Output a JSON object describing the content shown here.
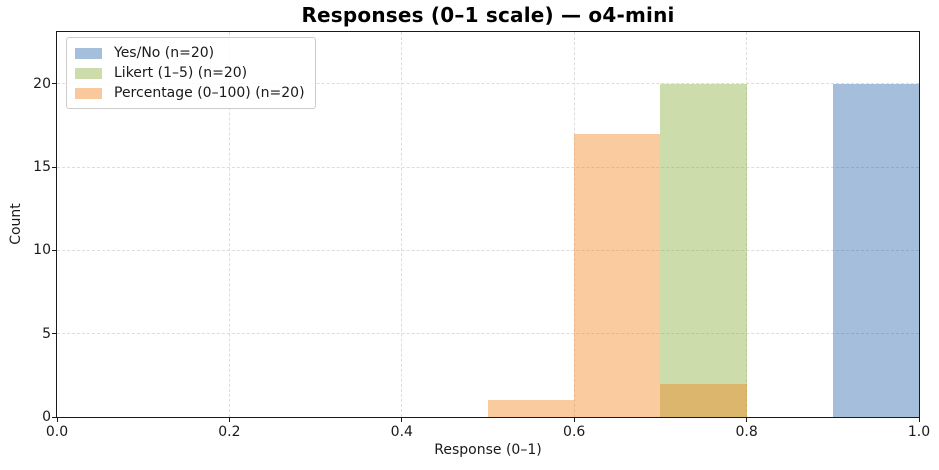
{
  "figure": {
    "title": "Responses (0–1 scale) — o4-mini"
  },
  "chart_data": {
    "type": "bar",
    "subtype": "histogram",
    "title": "Responses (0–1 scale) — o4-mini",
    "xlabel": "Response (0–1)",
    "ylabel": "Count",
    "xlim": [
      0.0,
      1.0
    ],
    "ylim": [
      0.0,
      23.1
    ],
    "bin_width": 0.1,
    "grid": true,
    "grid_style": "dashed",
    "grid_color": "#dcdcdc",
    "spine_color": "#1a1a1a",
    "legend_position": "upper-left",
    "xticks": [
      {
        "v": 0.0,
        "label": "0.0"
      },
      {
        "v": 0.2,
        "label": "0.2"
      },
      {
        "v": 0.4,
        "label": "0.4"
      },
      {
        "v": 0.6,
        "label": "0.6"
      },
      {
        "v": 0.8,
        "label": "0.8"
      },
      {
        "v": 1.0,
        "label": "1.0"
      }
    ],
    "yticks": [
      {
        "v": 0,
        "label": "0"
      },
      {
        "v": 5,
        "label": "5"
      },
      {
        "v": 10,
        "label": "10"
      },
      {
        "v": 15,
        "label": "15"
      },
      {
        "v": 20,
        "label": "20"
      }
    ],
    "series": [
      {
        "key": "yes-no",
        "name": "Yes/No (n=20)",
        "color": "rgba(30,93,168,0.4)",
        "swatch_hex": "#a5bedc",
        "bins": [
          {
            "x0": 0.9,
            "x1": 1.0,
            "count": 20
          }
        ]
      },
      {
        "key": "likert",
        "name": "Likert (1–5) (n=20)",
        "color": "rgba(130,168,45,0.4)",
        "swatch_hex": "#cddcab",
        "bins": [
          {
            "x0": 0.7,
            "x1": 0.8,
            "count": 20
          }
        ]
      },
      {
        "key": "percentage",
        "name": "Percentage (0–100) (n=20)",
        "color": "rgba(243,124,16,0.4)",
        "swatch_hex": "#f9c99d",
        "bins": [
          {
            "x0": 0.5,
            "x1": 0.6,
            "count": 1
          },
          {
            "x0": 0.6,
            "x1": 0.7,
            "count": 17
          },
          {
            "x0": 0.7,
            "x1": 0.8,
            "count": 2
          }
        ]
      }
    ]
  }
}
